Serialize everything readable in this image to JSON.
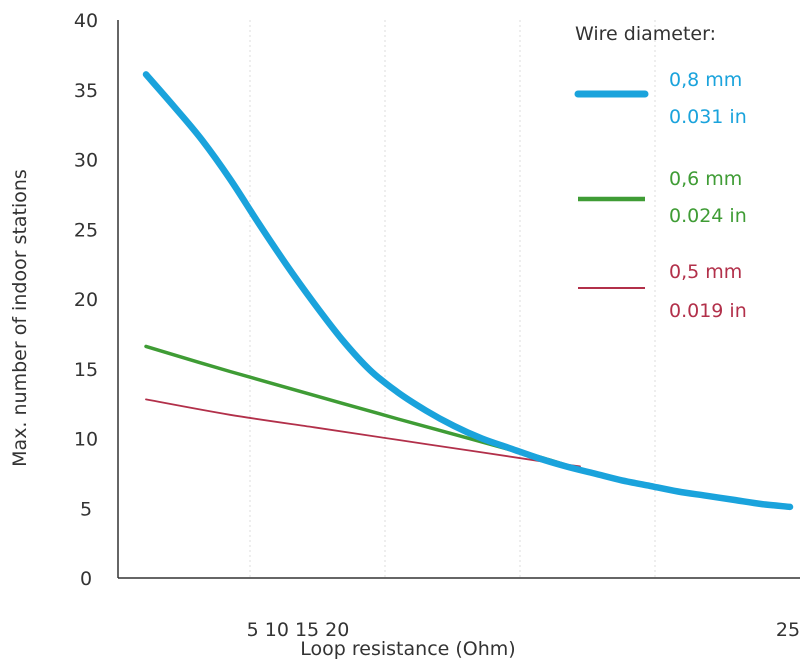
{
  "chart_data": {
    "type": "line",
    "title": "",
    "xlabel": "Loop resistance (Ohm)",
    "ylabel": "Max. number of indoor stations",
    "ylim": [
      0,
      40
    ],
    "y_ticks": [
      "0",
      "5",
      "10",
      "15",
      "20",
      "25",
      "30",
      "35",
      "40"
    ],
    "x_tick_labels": [
      "5 10 15 20",
      "25"
    ],
    "grid": true,
    "legend": {
      "title": "Wire diameter:",
      "position": "top-right",
      "entries": [
        {
          "series": "0.8",
          "line1": "0,8 mm",
          "line2": "0.031 in"
        },
        {
          "series": "0.6",
          "line1": "0,6 mm",
          "line2": "0.024 in"
        },
        {
          "series": "0.5",
          "line1": "0,5 mm",
          "line2": "0.019 in"
        }
      ]
    },
    "series": [
      {
        "key": "0.8",
        "color": "#1aa3dc",
        "points": [
          [
            2,
            36.1
          ],
          [
            3,
            33.8
          ],
          [
            4,
            31.4
          ],
          [
            5,
            28.6
          ],
          [
            6,
            25.5
          ],
          [
            7,
            22.5
          ],
          [
            8,
            19.7
          ],
          [
            9,
            17.1
          ],
          [
            10,
            14.9
          ],
          [
            11,
            13.3
          ],
          [
            12,
            12.0
          ],
          [
            13,
            10.9
          ],
          [
            14,
            10.0
          ],
          [
            15,
            9.3
          ],
          [
            16,
            8.6
          ],
          [
            17,
            8.0
          ],
          [
            18,
            7.5
          ],
          [
            19,
            7.0
          ],
          [
            20,
            6.6
          ],
          [
            21,
            6.2
          ],
          [
            22,
            5.9
          ],
          [
            23,
            5.6
          ],
          [
            24,
            5.3
          ],
          [
            25,
            5.1
          ]
        ]
      },
      {
        "key": "0.6",
        "color": "#3f9c35",
        "points": [
          [
            2,
            16.6
          ],
          [
            5,
            14.8
          ],
          [
            8,
            13.1
          ],
          [
            11,
            11.4
          ],
          [
            13,
            10.3
          ],
          [
            15,
            9.2
          ],
          [
            16,
            8.7
          ],
          [
            17,
            8.1
          ]
        ]
      },
      {
        "key": "0.5",
        "color": "#b2304a",
        "points": [
          [
            2,
            12.8
          ],
          [
            5,
            11.7
          ],
          [
            8,
            10.8
          ],
          [
            11,
            9.9
          ],
          [
            14,
            9.0
          ],
          [
            16,
            8.4
          ],
          [
            17.5,
            8.0
          ]
        ]
      }
    ]
  }
}
